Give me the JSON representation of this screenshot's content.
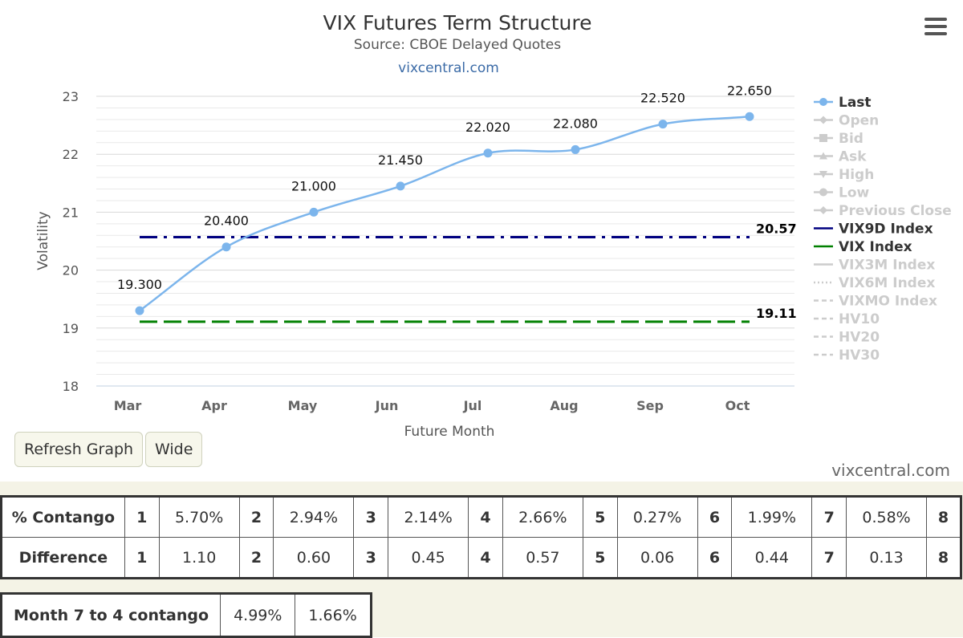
{
  "chart_data": {
    "type": "line",
    "title": "VIX Futures Term Structure",
    "subtitle": "Source: CBOE Delayed Quotes",
    "credit": "vixcentral.com",
    "xlabel": "Future Month",
    "ylabel": "Volatility",
    "categories": [
      "Mar",
      "Apr",
      "May",
      "Jun",
      "Jul",
      "Aug",
      "Sep",
      "Oct"
    ],
    "ylim": [
      18,
      23
    ],
    "yticks": [
      18,
      19,
      20,
      21,
      22,
      23
    ],
    "grid": true,
    "legend_position": "right",
    "series": [
      {
        "name": "Last",
        "values": [
          19.3,
          20.4,
          21.0,
          21.45,
          22.02,
          22.08,
          22.52,
          22.65
        ],
        "labels": [
          "19.300",
          "20.400",
          "21.000",
          "21.450",
          "22.020",
          "22.080",
          "22.520",
          "22.650"
        ],
        "color": "#7cb5ec",
        "style": "solid",
        "markers": true
      },
      {
        "name": "VIX9D Index",
        "value": 20.57,
        "label": "20.57",
        "color": "#000080",
        "style": "dashdot"
      },
      {
        "name": "VIX Index",
        "value": 19.11,
        "label": "19.11",
        "color": "#008000",
        "style": "dash"
      }
    ],
    "legend": [
      {
        "name": "Last",
        "active": true,
        "symbol": "circle",
        "line": "solid",
        "color": "#7cb5ec"
      },
      {
        "name": "Open",
        "active": false,
        "symbol": "diamond",
        "line": "solid"
      },
      {
        "name": "Bid",
        "active": false,
        "symbol": "square",
        "line": "solid"
      },
      {
        "name": "Ask",
        "active": false,
        "symbol": "triangle",
        "line": "solid"
      },
      {
        "name": "High",
        "active": false,
        "symbol": "triangle-down",
        "line": "solid"
      },
      {
        "name": "Low",
        "active": false,
        "symbol": "circle",
        "line": "solid"
      },
      {
        "name": "Previous Close",
        "active": false,
        "symbol": "diamond",
        "line": "solid"
      },
      {
        "name": "VIX9D Index",
        "active": true,
        "symbol": "none",
        "line": "solid",
        "color": "#000080"
      },
      {
        "name": "VIX Index",
        "active": true,
        "symbol": "none",
        "line": "solid",
        "color": "#008000"
      },
      {
        "name": "VIX3M Index",
        "active": false,
        "symbol": "none",
        "line": "solid"
      },
      {
        "name": "VIX6M Index",
        "active": false,
        "symbol": "none",
        "line": "dot"
      },
      {
        "name": "VIXMO Index",
        "active": false,
        "symbol": "none",
        "line": "dash"
      },
      {
        "name": "HV10",
        "active": false,
        "symbol": "none",
        "line": "dash"
      },
      {
        "name": "HV20",
        "active": false,
        "symbol": "none",
        "line": "dash"
      },
      {
        "name": "HV30",
        "active": false,
        "symbol": "none",
        "line": "dash"
      }
    ]
  },
  "buttons": {
    "refresh": "Refresh Graph",
    "wide": "Wide"
  },
  "footer_brand": "vixcentral.com",
  "contango_table": {
    "rows": [
      {
        "label": "% Contango",
        "cells": [
          [
            "1",
            "5.70%"
          ],
          [
            "2",
            "2.94%"
          ],
          [
            "3",
            "2.14%"
          ],
          [
            "4",
            "2.66%"
          ],
          [
            "5",
            "0.27%"
          ],
          [
            "6",
            "1.99%"
          ],
          [
            "7",
            "0.58%"
          ]
        ],
        "last_index": "8"
      },
      {
        "label": "Difference",
        "cells": [
          [
            "1",
            "1.10"
          ],
          [
            "2",
            "0.60"
          ],
          [
            "3",
            "0.45"
          ],
          [
            "4",
            "0.57"
          ],
          [
            "5",
            "0.06"
          ],
          [
            "6",
            "0.44"
          ],
          [
            "7",
            "0.13"
          ]
        ],
        "last_index": "8"
      }
    ]
  },
  "month_table": {
    "label": "Month 7 to 4 contango",
    "values": [
      "4.99%",
      "1.66%"
    ]
  },
  "colors": {
    "last": "#7cb5ec",
    "vix9d": "#000080",
    "vix": "#008000",
    "inactive": "#cccccc",
    "band": "#f4f3e6"
  }
}
